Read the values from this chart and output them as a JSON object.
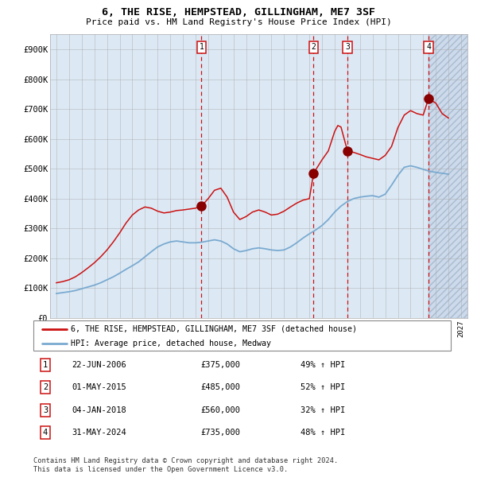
{
  "title": "6, THE RISE, HEMPSTEAD, GILLINGHAM, ME7 3SF",
  "subtitle": "Price paid vs. HM Land Registry's House Price Index (HPI)",
  "plot_bg_color": "#dce9f5",
  "grid_color": "#9999aa",
  "ylim": [
    0,
    950000
  ],
  "yticks": [
    0,
    100000,
    200000,
    300000,
    400000,
    500000,
    600000,
    700000,
    800000,
    900000
  ],
  "ytick_labels": [
    "£0",
    "£100K",
    "£200K",
    "£300K",
    "£400K",
    "£500K",
    "£600K",
    "£700K",
    "£800K",
    "£900K"
  ],
  "xlim_start": 1994.5,
  "xlim_end": 2027.5,
  "hpi_line_color": "#7aaad0",
  "price_line_color": "#cc1111",
  "sale_marker_color": "#880000",
  "sale_marker_size": 8,
  "dashed_line_color": "#cc1111",
  "future_hatch_start": 2024.42,
  "sales": [
    {
      "label": "1",
      "date_x": 2006.47,
      "price": 375000,
      "date_str": "22-JUN-2006",
      "pct": "49%",
      "direction": "↑"
    },
    {
      "label": "2",
      "date_x": 2015.33,
      "price": 485000,
      "date_str": "01-MAY-2015",
      "pct": "52%",
      "direction": "↑"
    },
    {
      "label": "3",
      "date_x": 2018.01,
      "price": 560000,
      "date_str": "04-JAN-2018",
      "pct": "32%",
      "direction": "↑"
    },
    {
      "label": "4",
      "date_x": 2024.42,
      "price": 735000,
      "date_str": "31-MAY-2024",
      "pct": "48%",
      "direction": "↑"
    }
  ],
  "legend_label_red": "6, THE RISE, HEMPSTEAD, GILLINGHAM, ME7 3SF (detached house)",
  "legend_label_blue": "HPI: Average price, detached house, Medway",
  "footer_text": "Contains HM Land Registry data © Crown copyright and database right 2024.\nThis data is licensed under the Open Government Licence v3.0.",
  "table_rows": [
    {
      "label": "1",
      "date": "22-JUN-2006",
      "price": "£375,000",
      "pct": "49% ↑ HPI"
    },
    {
      "label": "2",
      "date": "01-MAY-2015",
      "price": "£485,000",
      "pct": "52% ↑ HPI"
    },
    {
      "label": "3",
      "date": "04-JAN-2018",
      "price": "£560,000",
      "pct": "32% ↑ HPI"
    },
    {
      "label": "4",
      "date": "31-MAY-2024",
      "price": "£735,000",
      "pct": "48% ↑ HPI"
    }
  ],
  "hpi_data_x": [
    1995,
    1995.5,
    1996,
    1996.5,
    1997,
    1997.5,
    1998,
    1998.5,
    1999,
    1999.5,
    2000,
    2000.5,
    2001,
    2001.5,
    2002,
    2002.5,
    2003,
    2003.5,
    2004,
    2004.5,
    2005,
    2005.5,
    2006,
    2006.5,
    2007,
    2007.5,
    2008,
    2008.5,
    2009,
    2009.5,
    2010,
    2010.5,
    2011,
    2011.5,
    2012,
    2012.5,
    2013,
    2013.5,
    2014,
    2014.5,
    2015,
    2015.5,
    2016,
    2016.5,
    2017,
    2017.5,
    2018,
    2018.5,
    2019,
    2019.5,
    2020,
    2020.5,
    2021,
    2021.5,
    2022,
    2022.5,
    2023,
    2023.5,
    2024,
    2024.5,
    2025,
    2025.5,
    2026
  ],
  "hpi_data_y": [
    82000,
    85000,
    88000,
    92000,
    98000,
    104000,
    110000,
    118000,
    128000,
    138000,
    150000,
    163000,
    175000,
    188000,
    205000,
    222000,
    238000,
    248000,
    255000,
    258000,
    255000,
    252000,
    252000,
    254000,
    258000,
    262000,
    258000,
    248000,
    232000,
    222000,
    226000,
    232000,
    235000,
    232000,
    228000,
    226000,
    228000,
    238000,
    252000,
    268000,
    282000,
    295000,
    310000,
    330000,
    355000,
    375000,
    390000,
    400000,
    405000,
    408000,
    410000,
    405000,
    415000,
    445000,
    478000,
    505000,
    510000,
    505000,
    498000,
    492000,
    488000,
    485000,
    482000
  ],
  "red_data_x": [
    1995,
    1995.5,
    1996,
    1996.5,
    1997,
    1997.5,
    1998,
    1998.5,
    1999,
    1999.5,
    2000,
    2000.5,
    2001,
    2001.5,
    2002,
    2002.5,
    2003,
    2003.5,
    2004,
    2004.5,
    2005,
    2005.5,
    2006,
    2006.47,
    2007,
    2007.5,
    2008,
    2008.5,
    2009,
    2009.5,
    2010,
    2010.5,
    2011,
    2011.5,
    2012,
    2012.5,
    2013,
    2013.5,
    2014,
    2014.5,
    2015,
    2015.33,
    2016,
    2016.5,
    2017,
    2017.25,
    2017.5,
    2018.01,
    2018.5,
    2019,
    2019.5,
    2020,
    2020.5,
    2021,
    2021.5,
    2022,
    2022.5,
    2023,
    2023.5,
    2024,
    2024.42,
    2025,
    2025.5,
    2026
  ],
  "red_data_y": [
    118000,
    122000,
    128000,
    138000,
    152000,
    168000,
    185000,
    205000,
    228000,
    255000,
    285000,
    318000,
    345000,
    362000,
    372000,
    368000,
    358000,
    352000,
    355000,
    360000,
    362000,
    365000,
    368000,
    375000,
    400000,
    428000,
    435000,
    405000,
    355000,
    330000,
    340000,
    355000,
    362000,
    355000,
    345000,
    348000,
    358000,
    372000,
    385000,
    395000,
    400000,
    485000,
    530000,
    560000,
    625000,
    645000,
    640000,
    560000,
    555000,
    548000,
    540000,
    535000,
    530000,
    545000,
    575000,
    638000,
    680000,
    695000,
    685000,
    680000,
    735000,
    720000,
    685000,
    670000
  ]
}
